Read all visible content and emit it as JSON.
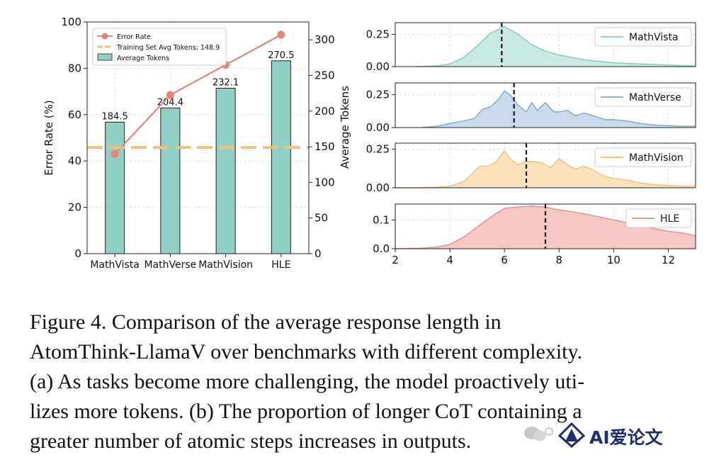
{
  "chart_data": [
    {
      "type": "bar",
      "id": "a",
      "categories": [
        "MathVista",
        "MathVerse",
        "MathVision",
        "HLE"
      ],
      "series": [
        {
          "name": "Average Tokens",
          "axis": "right",
          "values": [
            184.5,
            204.4,
            232.1,
            270.5
          ],
          "value_labels": [
            "184.5",
            "204.4",
            "232.1",
            "270.5"
          ],
          "color": "#91d0c6"
        },
        {
          "name": "Error Rate",
          "axis": "left",
          "type": "line",
          "values": [
            43,
            68.5,
            81.5,
            94.5
          ],
          "color": "#e8827a"
        },
        {
          "name": "Training Set Avg Tokens: 148.9",
          "axis": "right",
          "type": "hline",
          "value": 148.9,
          "color": "#f3bd7a"
        }
      ],
      "ylabel": "Error Rate (%)",
      "y2label": "Average Tokens",
      "ylim": [
        0,
        100
      ],
      "yticks": [
        "0",
        "20",
        "40",
        "60",
        "80",
        "100"
      ],
      "y2lim": [
        0,
        325
      ],
      "y2ticks": [
        "0",
        "50",
        "100",
        "150",
        "200",
        "250",
        "300"
      ],
      "legend": [
        "Error Rate",
        "Training Set Avg Tokens: 148.9",
        "Average Tokens"
      ],
      "legend_position": "top-left",
      "grid": true
    },
    {
      "type": "area",
      "id": "b",
      "xlim": [
        2,
        13
      ],
      "xticks": [
        "2",
        "4",
        "6",
        "8",
        "10",
        "12"
      ],
      "grid": true,
      "legend_position": "top-right",
      "panels": [
        {
          "name": "MathVista",
          "color": "#7fcbbf",
          "fill": "#cbe9e3",
          "mean": 5.9,
          "ylim": [
            0,
            0.34
          ],
          "yticks": [
            "0.00",
            "0.25"
          ],
          "ytick_values": [
            0,
            0.25
          ],
          "x": [
            2.8,
            3.5,
            4,
            4.5,
            5,
            5.5,
            6,
            6.5,
            7,
            7.5,
            8,
            9,
            10,
            11,
            12,
            13
          ],
          "y": [
            0.0,
            0.005,
            0.02,
            0.07,
            0.16,
            0.26,
            0.31,
            0.25,
            0.17,
            0.12,
            0.09,
            0.05,
            0.03,
            0.02,
            0.012,
            0.005
          ]
        },
        {
          "name": "MathVerse",
          "color": "#7aa8cc",
          "fill": "#c9dbeb",
          "mean": 6.35,
          "ylim": [
            0,
            0.34
          ],
          "yticks": [
            "0.00",
            "0.25"
          ],
          "ytick_values": [
            0,
            0.25
          ],
          "x": [
            3,
            3.5,
            4,
            4.5,
            4.9,
            5.2,
            5.5,
            5.8,
            6.0,
            6.2,
            6.5,
            6.8,
            7.0,
            7.2,
            7.5,
            7.8,
            8.0,
            8.3,
            8.6,
            8.9,
            9.1,
            9.4,
            9.7,
            10,
            10.5,
            11,
            11.5,
            12,
            12.5,
            13
          ],
          "y": [
            0.0,
            0.01,
            0.03,
            0.05,
            0.07,
            0.14,
            0.16,
            0.22,
            0.28,
            0.25,
            0.17,
            0.12,
            0.19,
            0.13,
            0.19,
            0.12,
            0.12,
            0.13,
            0.09,
            0.11,
            0.1,
            0.08,
            0.06,
            0.06,
            0.05,
            0.03,
            0.02,
            0.015,
            0.01,
            0.01
          ]
        },
        {
          "name": "MathVision",
          "color": "#f5bd74",
          "fill": "#fbe2bd",
          "mean": 6.8,
          "ylim": [
            0,
            0.29
          ],
          "yticks": [
            "0.00",
            "0.25"
          ],
          "ytick_values": [
            0,
            0.25
          ],
          "x": [
            2,
            2.5,
            3,
            3.5,
            4,
            4.5,
            4.8,
            5.1,
            5.4,
            5.7,
            6.0,
            6.2,
            6.5,
            6.8,
            7.1,
            7.4,
            7.7,
            8.0,
            8.3,
            8.6,
            8.9,
            9.2,
            9.6,
            10,
            10.5,
            11,
            11.5,
            12,
            12.5,
            13
          ],
          "y": [
            0.0,
            0.0,
            0.0,
            0.003,
            0.01,
            0.04,
            0.09,
            0.14,
            0.14,
            0.17,
            0.24,
            0.19,
            0.15,
            0.17,
            0.17,
            0.16,
            0.13,
            0.19,
            0.15,
            0.12,
            0.14,
            0.12,
            0.08,
            0.06,
            0.05,
            0.03,
            0.02,
            0.015,
            0.01,
            0.01
          ]
        },
        {
          "name": "HLE",
          "color": "#e98c86",
          "fill": "#f6c8c4",
          "mean": 7.5,
          "ylim": [
            0,
            0.155
          ],
          "yticks": [
            "0.0",
            "0.1"
          ],
          "ytick_values": [
            0,
            0.1
          ],
          "x": [
            2,
            3,
            3.5,
            4,
            4.5,
            5,
            5.5,
            6,
            6.5,
            7,
            7.5,
            8,
            8.5,
            9,
            9.5,
            10,
            10.5,
            11,
            11.5,
            12,
            12.5,
            13
          ],
          "y": [
            0.0,
            0.002,
            0.006,
            0.015,
            0.04,
            0.075,
            0.11,
            0.14,
            0.145,
            0.148,
            0.144,
            0.135,
            0.128,
            0.12,
            0.11,
            0.1,
            0.09,
            0.08,
            0.07,
            0.06,
            0.055,
            0.045
          ]
        }
      ]
    }
  ],
  "caption": {
    "lines": [
      "Figure 4.   Comparison of the average response length in",
      "AtomThink-LlamaV over benchmarks with different complexity.",
      "(a) As tasks become more challenging, the model proactively uti-",
      "lizes more tokens. (b) The proportion of longer CoT containing a",
      "greater number of atomic steps increases in outputs."
    ]
  },
  "watermark": {
    "icon": "wechat-icon",
    "text": "AI爱论文",
    "logo": "ai-logo-icon"
  }
}
